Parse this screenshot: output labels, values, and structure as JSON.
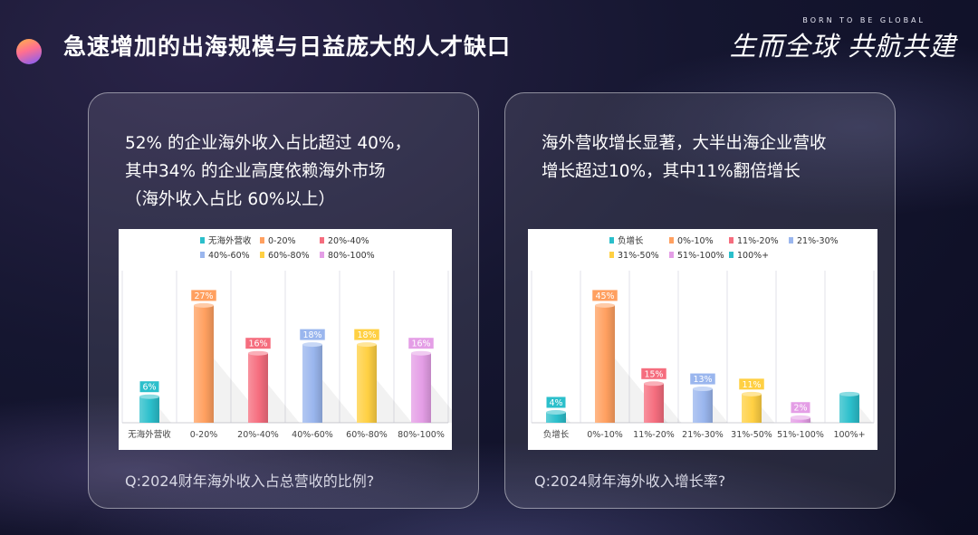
{
  "header": {
    "title": "急速增加的出海规模与日益庞大的人才缺口",
    "brand_sub": "BORN TO BE GLOBAL",
    "brand_text": "生而全球 共航共建"
  },
  "panel1": {
    "lines": [
      "52% 的企业海外收入占比超过 40%，",
      "其中34% 的企业高度依赖海外市场",
      "（海外收入占比 60%以上）"
    ],
    "question": "Q:2024财年海外收入占总营收的比例?"
  },
  "panel2": {
    "lines": [
      "海外营收增长显著，大半出海企业营收",
      "增长超过10%，其中11%翻倍增长"
    ],
    "question": "Q:2024财年海外收入增长率?"
  },
  "chart_data": [
    {
      "type": "bar",
      "categories": [
        "无海外营收",
        "0-20%",
        "20%-40%",
        "40%-60%",
        "60%-80%",
        "80%-100%"
      ],
      "values": [
        6,
        27,
        16,
        18,
        18,
        16
      ],
      "value_labels": [
        "6%",
        "27%",
        "16%",
        "18%",
        "18%",
        "16%"
      ],
      "colors": [
        "#2bbfcb",
        "#ffa060",
        "#f56d7e",
        "#9ab6ee",
        "#ffd043",
        "#e49ee6"
      ],
      "legend": [
        "无海外营收",
        "0-20%",
        "20%-40%",
        "40%-60%",
        "60%-80%",
        "80%-100%"
      ],
      "legend_placement": "top",
      "ylim": [
        0,
        30
      ],
      "grid": "vertical separators"
    },
    {
      "type": "bar",
      "categories": [
        "负增长",
        "0%-10%",
        "11%-20%",
        "21%-30%",
        "31%-50%",
        "51%-100%",
        "100%+"
      ],
      "values": [
        4,
        45,
        15,
        13,
        11,
        2,
        11
      ],
      "value_labels": [
        "4%",
        "45%",
        "15%",
        "13%",
        "11%",
        "2%",
        ""
      ],
      "colors": [
        "#2bbfcb",
        "#ffa060",
        "#f56d7e",
        "#9ab6ee",
        "#ffd043",
        "#e49ee6",
        "#2bbfcb"
      ],
      "legend": [
        "负增长",
        "0%-10%",
        "11%-20%",
        "21%-30%",
        "31%-50%",
        "51%-100%",
        "100%+"
      ],
      "legend_placement": "top",
      "ylim": [
        0,
        50
      ],
      "grid": "vertical separators"
    }
  ]
}
